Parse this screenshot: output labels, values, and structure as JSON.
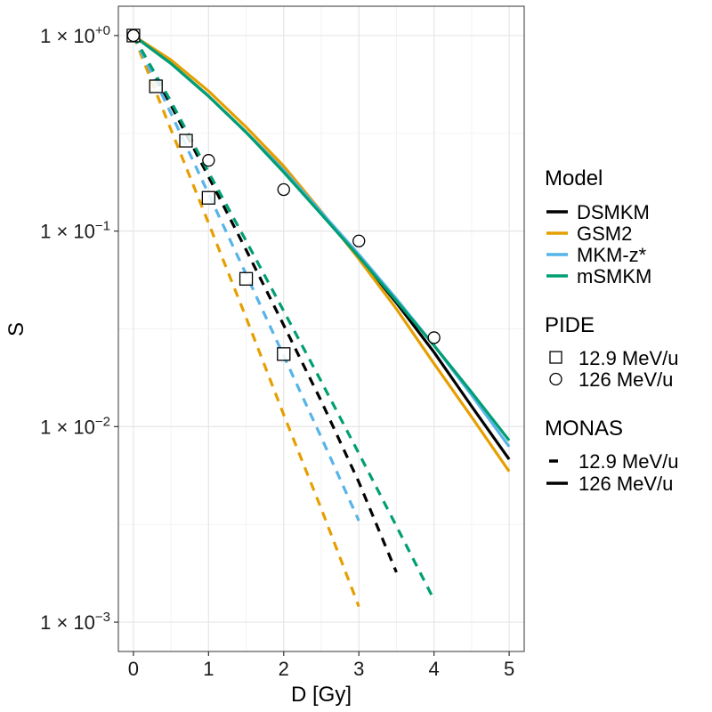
{
  "chart_data": {
    "type": "line",
    "title": "",
    "xlabel": "D [Gy]",
    "ylabel": "S",
    "xlim": [
      -0.2,
      5.2
    ],
    "ylim_log10": [
      -3.15,
      0.15
    ],
    "x_ticks": [
      0,
      1,
      2,
      3,
      4,
      5
    ],
    "x_minor_ticks": [
      0.5,
      1.5,
      2.5,
      3.5,
      4.5
    ],
    "y_ticks": [
      {
        "value": 1,
        "base": "1 × 10",
        "exp": "+0"
      },
      {
        "value": 0.1,
        "base": "1 × 10",
        "exp": "−1"
      },
      {
        "value": 0.01,
        "base": "1 × 10",
        "exp": "−2"
      },
      {
        "value": 0.001,
        "base": "1 × 10",
        "exp": "−3"
      }
    ],
    "y_minor_ticks": [
      0.316,
      0.0316,
      0.00316
    ],
    "grid": true,
    "colors": {
      "DSMKM": "#000000",
      "GSM2": "#E69F00",
      "MKM-z*": "#56B4E9",
      "mSMKM": "#009E73"
    },
    "series": [
      {
        "name": "DSMKM",
        "energy": "126 MeV/u",
        "style": "solid",
        "x": [
          0,
          0.5,
          1,
          1.5,
          2,
          2.5,
          3,
          3.5,
          4,
          4.5,
          5
        ],
        "y": [
          1.0,
          0.72,
          0.49,
          0.32,
          0.205,
          0.124,
          0.074,
          0.043,
          0.024,
          0.0127,
          0.0068
        ]
      },
      {
        "name": "GSM2",
        "energy": "126 MeV/u",
        "style": "solid",
        "x": [
          0,
          0.5,
          1,
          1.5,
          2,
          2.5,
          3,
          3.5,
          4,
          4.5,
          5
        ],
        "y": [
          1.0,
          0.75,
          0.52,
          0.34,
          0.215,
          0.126,
          0.072,
          0.04,
          0.021,
          0.0112,
          0.0059
        ]
      },
      {
        "name": "MKM-z*",
        "energy": "126 MeV/u",
        "style": "solid",
        "x": [
          0,
          0.5,
          1,
          1.5,
          2,
          2.5,
          3,
          3.5,
          4,
          4.5,
          5
        ],
        "y": [
          1.0,
          0.72,
          0.49,
          0.32,
          0.205,
          0.125,
          0.076,
          0.045,
          0.026,
          0.0145,
          0.0079
        ]
      },
      {
        "name": "mSMKM",
        "energy": "126 MeV/u",
        "style": "solid",
        "x": [
          0,
          0.5,
          1,
          1.5,
          2,
          2.5,
          3,
          3.5,
          4,
          4.5,
          5
        ],
        "y": [
          1.0,
          0.72,
          0.49,
          0.32,
          0.2,
          0.122,
          0.074,
          0.044,
          0.026,
          0.015,
          0.0085
        ]
      },
      {
        "name": "DSMKM",
        "energy": "12.9 MeV/u",
        "style": "dashed",
        "x": [
          0,
          0.5,
          1,
          1.5,
          2,
          2.5,
          3,
          3.5
        ],
        "y": [
          1.0,
          0.44,
          0.19,
          0.08,
          0.033,
          0.0135,
          0.0052,
          0.0018
        ]
      },
      {
        "name": "GSM2",
        "energy": "12.9 MeV/u",
        "style": "dashed",
        "x": [
          0,
          0.5,
          1,
          1.5,
          2,
          2.5,
          3
        ],
        "y": [
          1.0,
          0.33,
          0.11,
          0.036,
          0.0115,
          0.0038,
          0.0012
        ]
      },
      {
        "name": "MKM-z*",
        "energy": "12.9 MeV/u",
        "style": "dashed",
        "x": [
          0,
          0.5,
          1,
          1.5,
          2,
          2.5,
          3
        ],
        "y": [
          1.0,
          0.4,
          0.155,
          0.06,
          0.023,
          0.0088,
          0.0033
        ]
      },
      {
        "name": "mSMKM",
        "energy": "12.9 MeV/u",
        "style": "dashed",
        "x": [
          0,
          0.5,
          1,
          1.5,
          2,
          2.5,
          3,
          3.5,
          4
        ],
        "y": [
          1.0,
          0.46,
          0.2,
          0.089,
          0.039,
          0.017,
          0.0073,
          0.0031,
          0.0013
        ]
      }
    ],
    "points": [
      {
        "dataset": "12.9 MeV/u",
        "marker": "square",
        "x": [
          0,
          0.3,
          0.7,
          1.0,
          1.5,
          2.0
        ],
        "y": [
          1.0,
          0.55,
          0.29,
          0.148,
          0.057,
          0.0235
        ]
      },
      {
        "dataset": "126 MeV/u",
        "marker": "circle",
        "x": [
          0,
          1,
          2,
          3,
          4
        ],
        "y": [
          1.0,
          0.23,
          0.163,
          0.089,
          0.0285
        ]
      }
    ],
    "legend": {
      "placement": "right",
      "model": {
        "title": "Model",
        "entries": [
          "DSMKM",
          "GSM2",
          "MKM-z*",
          "mSMKM"
        ]
      },
      "pide": {
        "title": "PIDE",
        "entries": [
          "12.9 MeV/u",
          "126 MeV/u"
        ]
      },
      "monas": {
        "title": "MONAS",
        "entries": [
          "12.9 MeV/u",
          "126 MeV/u"
        ]
      }
    }
  }
}
